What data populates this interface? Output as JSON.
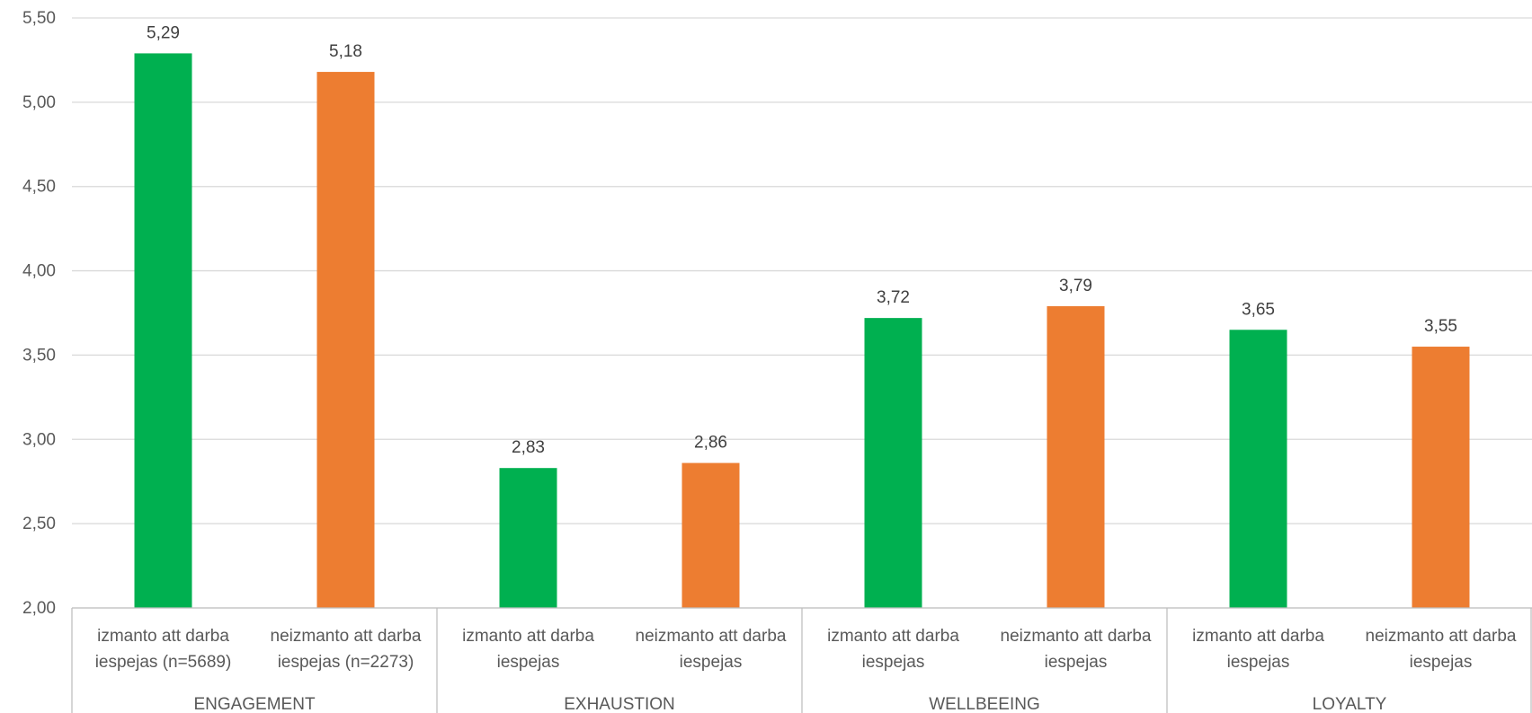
{
  "chart_data": {
    "type": "bar",
    "title": "",
    "xlabel": "",
    "ylabel": "",
    "ylim": [
      2.0,
      5.5
    ],
    "y_ticks": [
      "2,00",
      "2,50",
      "3,00",
      "3,50",
      "4,00",
      "4,50",
      "5,00",
      "5,50"
    ],
    "grid": true,
    "legend": "none",
    "colors": {
      "izmanto": "#00b050",
      "neizmanto": "#ed7d31"
    },
    "groups": [
      {
        "name": "ENGAGEMENT",
        "bars": [
          {
            "label": [
              "izmanto att darba",
              "iespejas (n=5689)"
            ],
            "value": 5.29,
            "display": "5,29",
            "color": "#00b050"
          },
          {
            "label": [
              "neizmanto att darba",
              "iespejas (n=2273)"
            ],
            "value": 5.18,
            "display": "5,18",
            "color": "#ed7d31"
          }
        ]
      },
      {
        "name": "EXHAUSTION",
        "bars": [
          {
            "label": [
              "izmanto att darba",
              "iespejas"
            ],
            "value": 2.83,
            "display": "2,83",
            "color": "#00b050"
          },
          {
            "label": [
              "neizmanto att darba",
              "iespejas"
            ],
            "value": 2.86,
            "display": "2,86",
            "color": "#ed7d31"
          }
        ]
      },
      {
        "name": "WELLBEEING",
        "bars": [
          {
            "label": [
              "izmanto att darba",
              "iespejas"
            ],
            "value": 3.72,
            "display": "3,72",
            "color": "#00b050"
          },
          {
            "label": [
              "neizmanto att darba",
              "iespejas"
            ],
            "value": 3.79,
            "display": "3,79",
            "color": "#ed7d31"
          }
        ]
      },
      {
        "name": "LOYALTY",
        "bars": [
          {
            "label": [
              "izmanto att darba",
              "iespejas"
            ],
            "value": 3.65,
            "display": "3,65",
            "color": "#00b050"
          },
          {
            "label": [
              "neizmanto att darba",
              "iespejas"
            ],
            "value": 3.55,
            "display": "3,55",
            "color": "#ed7d31"
          }
        ]
      }
    ]
  }
}
